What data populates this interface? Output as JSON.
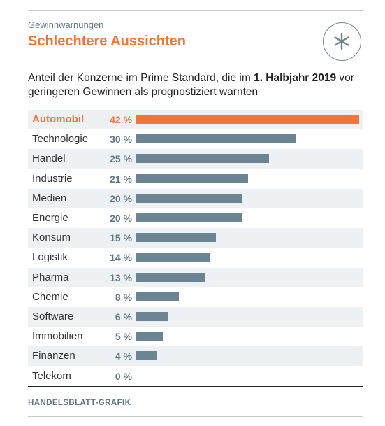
{
  "header": {
    "kicker": "Gewinnwarnungen",
    "headline": "Schlechtere Aussichten",
    "logo_icon": "asterisk-icon"
  },
  "subtitle": {
    "part1": "Anteil der Konzerne im Prime Standard, die im ",
    "bold": "1. Halbjahr 2019",
    "part2": " vor geringeren Gewinnen als prognostiziert warnten"
  },
  "footer": {
    "source": "HANDELSBLATT-GRAFIK"
  },
  "colors": {
    "highlight": "#f0763a",
    "bar": "#6a8591",
    "stripe": "#eef1f3",
    "label": "#5e7784"
  },
  "chart_data": {
    "type": "bar",
    "orientation": "horizontal",
    "title": "Schlechtere Aussichten",
    "subtitle": "Anteil der Konzerne im Prime Standard, die im 1. Halbjahr 2019 vor geringeren Gewinnen als prognostiziert warnten",
    "categories": [
      "Automobil",
      "Technologie",
      "Handel",
      "Industrie",
      "Medien",
      "Energie",
      "Konsum",
      "Logistik",
      "Pharma",
      "Chemie",
      "Software",
      "Immobilien",
      "Finanzen",
      "Telekom"
    ],
    "values": [
      42,
      30,
      25,
      21,
      20,
      20,
      15,
      14,
      13,
      8,
      6,
      5,
      4,
      0
    ],
    "value_labels": [
      "42 %",
      "30 %",
      "25 %",
      "21 %",
      "20 %",
      "20 %",
      "15 %",
      "14 %",
      "13 %",
      "8 %",
      "6 %",
      "5 %",
      "4 %",
      "0 %"
    ],
    "highlight_category": "Automobil",
    "xlim": [
      0,
      42
    ],
    "unit": "%",
    "grid": false,
    "legend": "none"
  }
}
